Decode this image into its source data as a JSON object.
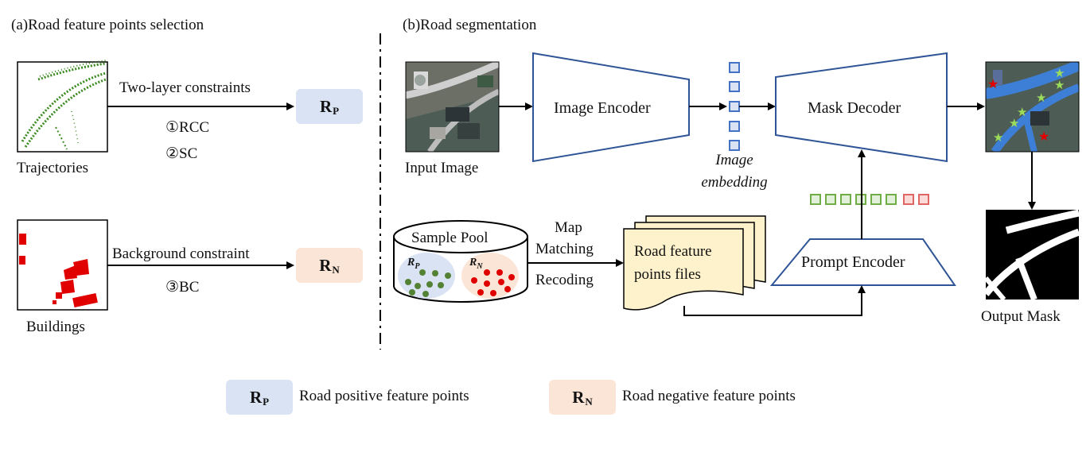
{
  "section_a_title": "(a)Road feature points selection",
  "section_b_title": "(b)Road segmentation",
  "trajectories_label": "Trajectories",
  "buildings_label": "Buildings",
  "two_layer_label": "Two-layer constraints",
  "rcc_label": "①RCC",
  "sc_label": "②SC",
  "background_label": "Background  constraint",
  "bc_label": "③BC",
  "rp_main": "R",
  "rp_sub": "P",
  "rn_main": "R",
  "rn_sub": "N",
  "input_image_label": "Input Image",
  "image_encoder_label": "Image Encoder",
  "image_embedding_line1": "Image",
  "image_embedding_line2": "embedding",
  "mask_decoder_label": "Mask Decoder",
  "prompt_encoder_label": "Prompt Encoder",
  "sample_pool_label": "Sample Pool",
  "pool_rp_main": "R",
  "pool_rp_sub": "P",
  "pool_rn_main": "R",
  "pool_rn_sub": "N",
  "map_label": "Map",
  "matching_label": "Matching",
  "recoding_label": "Recoding",
  "files_line1": "Road feature",
  "files_line2": "points files",
  "output_mask_label": "Output Mask",
  "legend_pos_text": "Road positive feature points",
  "legend_neg_text": "Road negative feature points",
  "colors": {
    "encoder_stroke": "#2f5597",
    "embedding_square": "#4472c4",
    "positive_prompt": "#70ad47",
    "negative_prompt": "#e06666",
    "trajectory": "#3a8a1f",
    "building": "#e00000",
    "rp_fill": "#dae3f3",
    "rn_fill": "#fbe5d6",
    "files_fill": "#fdf2cc",
    "road_overlay": "#3d7fd6"
  },
  "icons": [
    "right-arrow-icon",
    "down-arrow-icon",
    "up-arrow-icon",
    "green-star-icon",
    "red-star-icon"
  ]
}
